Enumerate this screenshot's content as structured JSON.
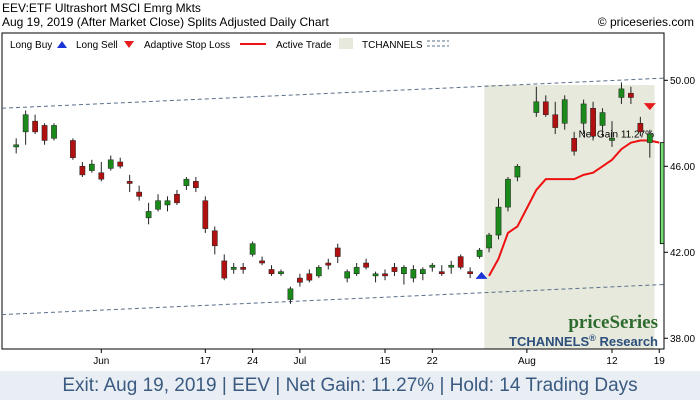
{
  "header": {
    "title": "EEV:ETF Ultrashort MSCI Emrg Mkts",
    "subtitle": "Aug 19, 2019 (After Market Close)  Splits Adjusted Daily Chart",
    "copyright": "© priceseries.com"
  },
  "legend": {
    "long_buy": "Long Buy",
    "long_sell": "Long Sell",
    "adaptive_stop": "Adaptive Stop Loss",
    "active_trade": "Active Trade",
    "tchannels": "TCHANNELS"
  },
  "colors": {
    "up": "#1a8a1a",
    "down": "#b01010",
    "stop": "#ee1111",
    "buy_marker": "#1c35d8",
    "sell_marker": "#e61b1b",
    "active_trade_shade": "#e6e9dc",
    "gain_box": "#77dd77",
    "channel": "#5a6f8a"
  },
  "annotation": {
    "net_gain_label": "Net Gain 11.27%"
  },
  "brand": {
    "name": "priceSeries",
    "sub_prefix": "TCHANNELS",
    "sub_reg": "®",
    "sub_suffix": " Research"
  },
  "footer": {
    "exit": "Exit: Aug 19, 2019",
    "ticker": "EEV",
    "gain": "Net Gain: 11.27%",
    "hold": "Hold: 14 Trading Days"
  },
  "chart_data": {
    "type": "candlestick",
    "y_ticks": [
      "50.00",
      "46.00",
      "42.00",
      "38.00"
    ],
    "x_ticks": [
      {
        "label": "Jun",
        "index": 10
      },
      {
        "label": "17",
        "index": 21
      },
      {
        "label": "24",
        "index": 26
      },
      {
        "label": "Jul",
        "index": 31
      },
      {
        "label": "15",
        "index": 40
      },
      {
        "label": "22",
        "index": 45
      },
      {
        "label": "Aug",
        "index": 55
      },
      {
        "label": "12",
        "index": 64
      },
      {
        "label": "19",
        "index": 69
      }
    ],
    "ylim": [
      37.5,
      52.2
    ],
    "n_bars": 70,
    "grid": false,
    "candles": [
      {
        "i": 1,
        "o": 46.9,
        "h": 47.3,
        "l": 46.6,
        "c": 47.0
      },
      {
        "i": 2,
        "o": 47.6,
        "h": 48.6,
        "l": 47.0,
        "c": 48.4
      },
      {
        "i": 3,
        "o": 48.1,
        "h": 48.4,
        "l": 47.5,
        "c": 47.6
      },
      {
        "i": 4,
        "o": 47.9,
        "h": 48.0,
        "l": 47.0,
        "c": 47.2
      },
      {
        "i": 5,
        "o": 47.3,
        "h": 48.0,
        "l": 47.2,
        "c": 47.9
      },
      {
        "i": 7,
        "o": 47.2,
        "h": 47.3,
        "l": 46.3,
        "c": 46.4
      },
      {
        "i": 8,
        "o": 46.0,
        "h": 46.2,
        "l": 45.5,
        "c": 45.6
      },
      {
        "i": 9,
        "o": 45.8,
        "h": 46.3,
        "l": 45.7,
        "c": 46.1
      },
      {
        "i": 10,
        "o": 45.7,
        "h": 46.2,
        "l": 45.3,
        "c": 45.4
      },
      {
        "i": 11,
        "o": 45.9,
        "h": 46.5,
        "l": 45.8,
        "c": 46.3
      },
      {
        "i": 12,
        "o": 46.2,
        "h": 46.4,
        "l": 45.9,
        "c": 46.0
      },
      {
        "i": 13,
        "o": 45.3,
        "h": 45.6,
        "l": 44.8,
        "c": 45.2
      },
      {
        "i": 14,
        "o": 44.8,
        "h": 45.1,
        "l": 44.4,
        "c": 44.6
      },
      {
        "i": 15,
        "o": 43.6,
        "h": 44.3,
        "l": 43.3,
        "c": 43.9
      },
      {
        "i": 16,
        "o": 44.0,
        "h": 44.7,
        "l": 43.9,
        "c": 44.4
      },
      {
        "i": 17,
        "o": 44.2,
        "h": 44.6,
        "l": 43.9,
        "c": 44.4
      },
      {
        "i": 18,
        "o": 44.7,
        "h": 44.9,
        "l": 44.2,
        "c": 44.3
      },
      {
        "i": 19,
        "o": 45.1,
        "h": 45.5,
        "l": 44.9,
        "c": 45.4
      },
      {
        "i": 20,
        "o": 45.3,
        "h": 45.5,
        "l": 44.8,
        "c": 45.0
      },
      {
        "i": 21,
        "o": 44.4,
        "h": 44.6,
        "l": 42.9,
        "c": 43.1
      },
      {
        "i": 22,
        "o": 43.0,
        "h": 43.2,
        "l": 41.9,
        "c": 42.3
      },
      {
        "i": 23,
        "o": 41.6,
        "h": 41.9,
        "l": 40.7,
        "c": 40.8
      },
      {
        "i": 24,
        "o": 41.2,
        "h": 41.5,
        "l": 41.0,
        "c": 41.3
      },
      {
        "i": 25,
        "o": 41.3,
        "h": 41.5,
        "l": 41.0,
        "c": 41.2
      },
      {
        "i": 26,
        "o": 41.9,
        "h": 42.5,
        "l": 41.8,
        "c": 42.4
      },
      {
        "i": 27,
        "o": 41.6,
        "h": 41.8,
        "l": 41.4,
        "c": 41.5
      },
      {
        "i": 28,
        "o": 41.2,
        "h": 41.4,
        "l": 40.9,
        "c": 41.0
      },
      {
        "i": 29,
        "o": 41.0,
        "h": 41.2,
        "l": 40.9,
        "c": 41.1
      },
      {
        "i": 30,
        "o": 39.8,
        "h": 40.4,
        "l": 39.6,
        "c": 40.3
      },
      {
        "i": 31,
        "o": 40.8,
        "h": 41.0,
        "l": 40.4,
        "c": 40.6
      },
      {
        "i": 32,
        "o": 41.0,
        "h": 41.2,
        "l": 40.6,
        "c": 40.7
      },
      {
        "i": 33,
        "o": 40.9,
        "h": 41.4,
        "l": 40.8,
        "c": 41.3
      },
      {
        "i": 34,
        "o": 41.5,
        "h": 41.7,
        "l": 41.2,
        "c": 41.4
      },
      {
        "i": 35,
        "o": 42.2,
        "h": 42.4,
        "l": 41.5,
        "c": 41.8
      },
      {
        "i": 36,
        "o": 40.8,
        "h": 41.2,
        "l": 40.6,
        "c": 41.1
      },
      {
        "i": 37,
        "o": 41.0,
        "h": 41.5,
        "l": 40.9,
        "c": 41.3
      },
      {
        "i": 38,
        "o": 41.5,
        "h": 41.7,
        "l": 41.2,
        "c": 41.3
      },
      {
        "i": 39,
        "o": 40.9,
        "h": 41.1,
        "l": 40.6,
        "c": 41.0
      },
      {
        "i": 40,
        "o": 41.0,
        "h": 41.2,
        "l": 40.7,
        "c": 40.9
      },
      {
        "i": 41,
        "o": 41.3,
        "h": 41.5,
        "l": 40.9,
        "c": 41.1
      },
      {
        "i": 42,
        "o": 41.0,
        "h": 41.4,
        "l": 40.5,
        "c": 41.3
      },
      {
        "i": 43,
        "o": 40.8,
        "h": 41.4,
        "l": 40.6,
        "c": 41.2
      },
      {
        "i": 44,
        "o": 41.0,
        "h": 41.3,
        "l": 40.7,
        "c": 41.2
      },
      {
        "i": 45,
        "o": 41.3,
        "h": 41.5,
        "l": 41.1,
        "c": 41.4
      },
      {
        "i": 46,
        "o": 41.1,
        "h": 41.4,
        "l": 40.9,
        "c": 41.0
      },
      {
        "i": 47,
        "o": 41.3,
        "h": 41.6,
        "l": 41.0,
        "c": 41.4
      },
      {
        "i": 48,
        "o": 41.8,
        "h": 41.9,
        "l": 41.2,
        "c": 41.3
      },
      {
        "i": 49,
        "o": 41.1,
        "h": 41.3,
        "l": 40.8,
        "c": 41.0
      },
      {
        "i": 50,
        "o": 41.8,
        "h": 42.2,
        "l": 41.7,
        "c": 42.1
      },
      {
        "i": 51,
        "o": 42.2,
        "h": 42.9,
        "l": 42.0,
        "c": 42.8
      },
      {
        "i": 52,
        "o": 42.8,
        "h": 44.5,
        "l": 42.6,
        "c": 44.1
      },
      {
        "i": 53,
        "o": 44.1,
        "h": 45.5,
        "l": 43.9,
        "c": 45.4
      },
      {
        "i": 54,
        "o": 45.5,
        "h": 46.1,
        "l": 45.3,
        "c": 46.0
      },
      {
        "i": 56,
        "o": 48.5,
        "h": 49.7,
        "l": 48.3,
        "c": 49.0
      },
      {
        "i": 57,
        "o": 49.0,
        "h": 49.3,
        "l": 48.3,
        "c": 48.4
      },
      {
        "i": 58,
        "o": 48.4,
        "h": 49.0,
        "l": 47.5,
        "c": 47.8
      },
      {
        "i": 59,
        "o": 48.0,
        "h": 49.3,
        "l": 47.7,
        "c": 49.1
      },
      {
        "i": 60,
        "o": 47.3,
        "h": 47.6,
        "l": 46.5,
        "c": 46.7
      },
      {
        "i": 61,
        "o": 48.0,
        "h": 49.1,
        "l": 47.5,
        "c": 48.9
      },
      {
        "i": 62,
        "o": 48.7,
        "h": 49.0,
        "l": 47.2,
        "c": 47.4
      },
      {
        "i": 63,
        "o": 47.9,
        "h": 48.7,
        "l": 47.4,
        "c": 48.5
      },
      {
        "i": 64,
        "o": 47.2,
        "h": 48.1,
        "l": 46.9,
        "c": 47.3
      },
      {
        "i": 65,
        "o": 49.2,
        "h": 49.9,
        "l": 48.9,
        "c": 49.6
      },
      {
        "i": 66,
        "o": 49.4,
        "h": 49.7,
        "l": 48.9,
        "c": 49.2
      },
      {
        "i": 67,
        "o": 48.0,
        "h": 48.3,
        "l": 47.4,
        "c": 47.6
      },
      {
        "i": 68,
        "o": 47.1,
        "h": 47.7,
        "l": 46.4,
        "c": 47.5
      }
    ],
    "stop_loss": [
      {
        "i": 51,
        "v": 40.9
      },
      {
        "i": 52,
        "v": 41.7
      },
      {
        "i": 53,
        "v": 42.9
      },
      {
        "i": 54,
        "v": 43.2
      },
      {
        "i": 56,
        "v": 44.9
      },
      {
        "i": 57,
        "v": 45.4
      },
      {
        "i": 58,
        "v": 45.4
      },
      {
        "i": 59,
        "v": 45.4
      },
      {
        "i": 60,
        "v": 45.4
      },
      {
        "i": 61,
        "v": 45.6
      },
      {
        "i": 62,
        "v": 45.7
      },
      {
        "i": 63,
        "v": 46.0
      },
      {
        "i": 64,
        "v": 46.3
      },
      {
        "i": 65,
        "v": 46.8
      },
      {
        "i": 66,
        "v": 47.1
      },
      {
        "i": 67,
        "v": 47.2
      },
      {
        "i": 68,
        "v": 47.2
      },
      {
        "i": 69,
        "v": 47.1
      }
    ],
    "channel_upper": [
      {
        "i": 0,
        "v": 48.7
      },
      {
        "i": 69,
        "v": 50.1
      }
    ],
    "channel_lower": [
      {
        "i": 0,
        "v": 39.1
      },
      {
        "i": 69,
        "v": 40.5
      }
    ],
    "buy": {
      "i": 51,
      "v": 40.9
    },
    "sell": {
      "i": 68,
      "v": 48.8
    },
    "active_trade_range": [
      50.5,
      68.5
    ],
    "gain_box": {
      "low": 42.4,
      "high": 47.1
    }
  }
}
